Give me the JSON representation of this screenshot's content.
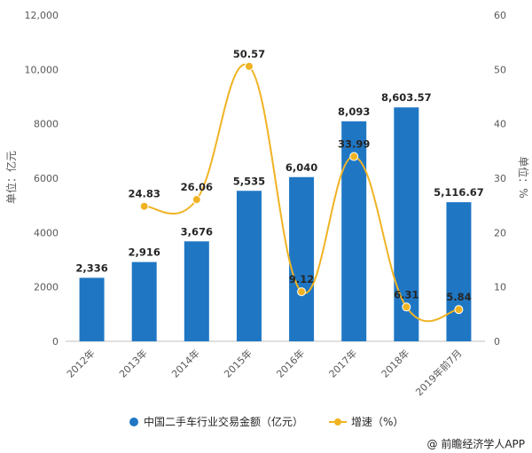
{
  "chart_data": {
    "type": "bar",
    "categories": [
      "2012年",
      "2013年",
      "2014年",
      "2015年",
      "2016年",
      "2017年",
      "2018年",
      "2019年前7月"
    ],
    "series": [
      {
        "name": "中国二手车行业交易金额（亿元）",
        "type": "bar",
        "axis": "left",
        "values": [
          2336,
          2916,
          3676,
          5535,
          6040,
          8093,
          8603.57,
          5116.67
        ],
        "labels": [
          "2,336",
          "2,916",
          "3,676",
          "5,535",
          "6,040",
          "8,093",
          "8,603.57",
          "5,116.67"
        ],
        "color": "#1f77c4"
      },
      {
        "name": "增速（%）",
        "type": "line",
        "axis": "right",
        "values": [
          null,
          24.83,
          26.06,
          50.57,
          9.12,
          33.99,
          6.31,
          5.84
        ],
        "labels": [
          "",
          "24.83",
          "26.06",
          "50.57",
          "9.12",
          "33.99",
          "6.31",
          "5.84"
        ],
        "color": "#f0b323"
      }
    ],
    "ylabel": "单位：亿元",
    "y2label": "单位：%",
    "ylim": [
      0,
      12000
    ],
    "y2lim": [
      0,
      60
    ],
    "yticks": [
      "0",
      "2000",
      "4000",
      "6000",
      "8000",
      "10,000",
      "12,000"
    ],
    "y2ticks": [
      "0",
      "10",
      "20",
      "30",
      "40",
      "50",
      "60"
    ],
    "grid": false,
    "legend": "bottom"
  },
  "source": "@ 前瞻经济学人APP"
}
